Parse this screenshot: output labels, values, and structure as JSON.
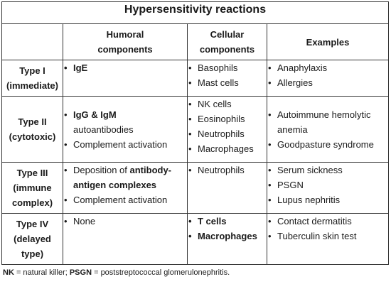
{
  "title": "Hypersensitivity reactions",
  "headers": {
    "humoral_line1": "Humoral",
    "humoral_line2": "components",
    "cellular_line1": "Cellular",
    "cellular_line2": "components",
    "examples": "Examples"
  },
  "rows": [
    {
      "type_line1": "Type I",
      "type_line2": "(immediate)",
      "humoral": {
        "i0": "IgE"
      },
      "cellular": {
        "i0": "Basophils",
        "i1": "Mast cells"
      },
      "examples": {
        "i0": "Anaphylaxis",
        "i1": "Allergies"
      }
    },
    {
      "type_line1": "Type II",
      "type_line2": "(cytotoxic)",
      "humoral": {
        "i0_bold": "IgG & IgM",
        "i0_rest": "autoantibodies",
        "i1": "Complement activation"
      },
      "cellular": {
        "i0": "NK cells",
        "i1": "Eosinophils",
        "i2": "Neutrophils",
        "i3": "Macrophages"
      },
      "examples": {
        "i0_l1": "Autoimmune hemolytic",
        "i0_l2": "anemia",
        "i1": "Goodpasture syndrome"
      }
    },
    {
      "type_line1": "Type III",
      "type_line2": "(immune",
      "type_line3": "complex)",
      "humoral": {
        "i0_pre": "Deposition of",
        "i0_bold1": "antibody-",
        "i0_bold2": "antigen complexes",
        "i1": "Complement activation"
      },
      "cellular": {
        "i0": "Neutrophils"
      },
      "examples": {
        "i0": "Serum sickness",
        "i1": "PSGN",
        "i2": "Lupus nephritis"
      }
    },
    {
      "type_line1": "Type IV",
      "type_line2": "(delayed",
      "type_line3": "type)",
      "humoral": {
        "i0": "None"
      },
      "cellular": {
        "i0": "T cells",
        "i1": "Macrophages"
      },
      "examples": {
        "i0": "Contact dermatitis",
        "i1": "Tuberculin skin test"
      }
    }
  ],
  "footnote": {
    "abbr1": "NK",
    "def1": " = natural killer; ",
    "abbr2": "PSGN",
    "def2": " = poststreptococcal glomerulonephritis."
  }
}
